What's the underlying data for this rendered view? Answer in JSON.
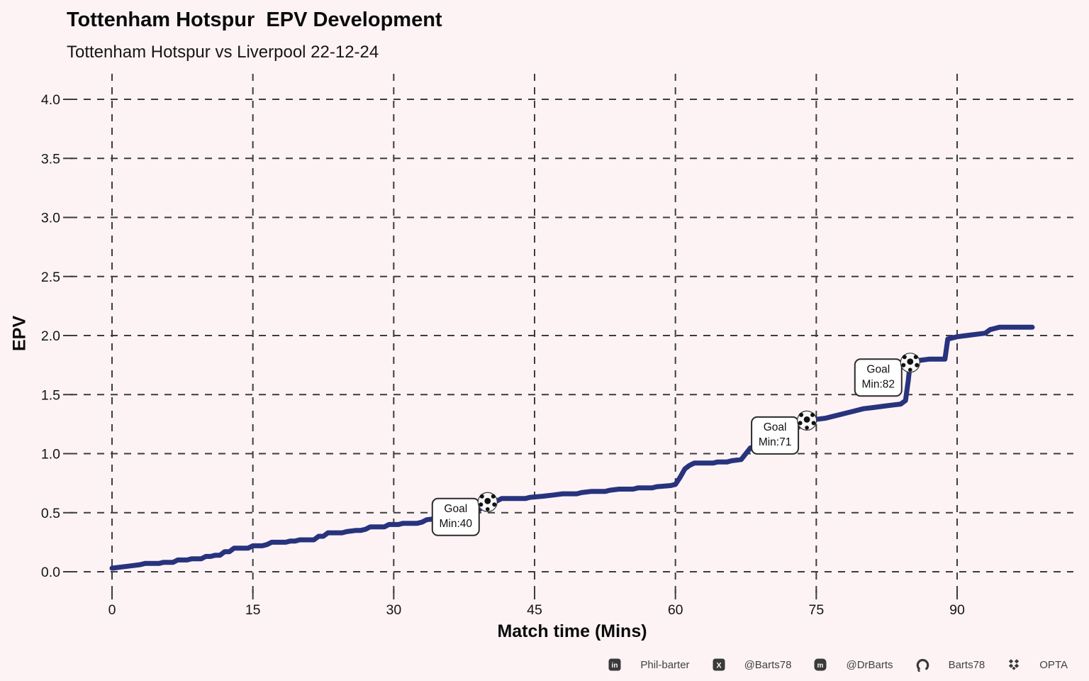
{
  "header": {
    "title": "Tottenham Hotspur  EPV Development",
    "subtitle": "Tottenham Hotspur vs Liverpool 22-12-24"
  },
  "chart_data": {
    "type": "line",
    "style": "step",
    "title": "Tottenham Hotspur  EPV Development",
    "subtitle": "Tottenham Hotspur vs Liverpool 22-12-24",
    "xlabel": "Match time (Mins)",
    "ylabel": "EPV",
    "xlim": [
      0,
      98
    ],
    "ylim": [
      0,
      4.0
    ],
    "x_ticks": [
      0,
      15,
      30,
      45,
      60,
      75,
      90
    ],
    "y_ticks": [
      0.0,
      0.5,
      1.0,
      1.5,
      2.0,
      2.5,
      3.0,
      3.5,
      4.0
    ],
    "grid": "dashed",
    "colors": {
      "line": "#28337e",
      "background": "#fdf3f5",
      "grid": "#3c3c3c"
    },
    "series": [
      {
        "name": "Tottenham Hotspur EPV",
        "color": "#28337e",
        "points": [
          [
            0,
            0.03
          ],
          [
            1,
            0.04
          ],
          [
            2,
            0.05
          ],
          [
            3,
            0.06
          ],
          [
            3.5,
            0.07
          ],
          [
            5,
            0.07
          ],
          [
            5.5,
            0.08
          ],
          [
            6.5,
            0.08
          ],
          [
            7,
            0.1
          ],
          [
            8,
            0.1
          ],
          [
            8.5,
            0.11
          ],
          [
            9.5,
            0.11
          ],
          [
            10,
            0.13
          ],
          [
            10.5,
            0.13
          ],
          [
            11,
            0.14
          ],
          [
            11.5,
            0.14
          ],
          [
            12,
            0.17
          ],
          [
            12.5,
            0.17
          ],
          [
            13,
            0.2
          ],
          [
            14.5,
            0.2
          ],
          [
            15,
            0.22
          ],
          [
            16,
            0.22
          ],
          [
            16.5,
            0.23
          ],
          [
            17,
            0.25
          ],
          [
            18.5,
            0.25
          ],
          [
            19,
            0.26
          ],
          [
            19.5,
            0.26
          ],
          [
            20,
            0.27
          ],
          [
            21.5,
            0.27
          ],
          [
            22,
            0.3
          ],
          [
            22.5,
            0.3
          ],
          [
            23,
            0.33
          ],
          [
            24.5,
            0.33
          ],
          [
            25,
            0.34
          ],
          [
            26,
            0.35
          ],
          [
            26.5,
            0.35
          ],
          [
            27,
            0.36
          ],
          [
            27.5,
            0.38
          ],
          [
            29,
            0.38
          ],
          [
            29.5,
            0.4
          ],
          [
            30.5,
            0.4
          ],
          [
            31,
            0.41
          ],
          [
            32.5,
            0.41
          ],
          [
            33,
            0.42
          ],
          [
            33.5,
            0.44
          ],
          [
            34.5,
            0.45
          ],
          [
            36,
            0.45
          ],
          [
            36.5,
            0.46
          ],
          [
            37.5,
            0.47
          ],
          [
            38.5,
            0.48
          ],
          [
            39,
            0.52
          ],
          [
            39.5,
            0.55
          ],
          [
            40,
            0.59
          ],
          [
            41,
            0.6
          ],
          [
            41.5,
            0.62
          ],
          [
            44,
            0.62
          ],
          [
            44.5,
            0.63
          ],
          [
            46,
            0.64
          ],
          [
            47,
            0.65
          ],
          [
            48,
            0.66
          ],
          [
            49.5,
            0.66
          ],
          [
            50,
            0.67
          ],
          [
            51,
            0.68
          ],
          [
            52.5,
            0.68
          ],
          [
            53,
            0.69
          ],
          [
            54,
            0.7
          ],
          [
            55.5,
            0.7
          ],
          [
            56,
            0.71
          ],
          [
            57.5,
            0.71
          ],
          [
            58,
            0.72
          ],
          [
            59.5,
            0.73
          ],
          [
            60,
            0.74
          ],
          [
            60.5,
            0.8
          ],
          [
            61,
            0.87
          ],
          [
            61.5,
            0.9
          ],
          [
            62,
            0.92
          ],
          [
            64,
            0.92
          ],
          [
            64.5,
            0.93
          ],
          [
            65.5,
            0.93
          ],
          [
            66,
            0.94
          ],
          [
            67,
            0.95
          ],
          [
            67.5,
            1.0
          ],
          [
            68,
            1.05
          ],
          [
            68.5,
            1.05
          ],
          [
            69,
            1.07
          ],
          [
            70,
            1.1
          ],
          [
            71,
            1.12
          ],
          [
            71.5,
            1.15
          ],
          [
            72,
            1.18
          ],
          [
            72.5,
            1.2
          ],
          [
            73,
            1.22
          ],
          [
            73.5,
            1.25
          ],
          [
            74,
            1.28
          ],
          [
            75,
            1.29
          ],
          [
            76,
            1.3
          ],
          [
            77,
            1.32
          ],
          [
            78,
            1.34
          ],
          [
            79,
            1.36
          ],
          [
            80,
            1.38
          ],
          [
            81,
            1.39
          ],
          [
            82,
            1.4
          ],
          [
            83,
            1.41
          ],
          [
            84,
            1.42
          ],
          [
            84.5,
            1.45
          ],
          [
            84.8,
            1.62
          ],
          [
            85,
            1.77
          ],
          [
            85.5,
            1.78
          ],
          [
            86,
            1.79
          ],
          [
            87,
            1.8
          ],
          [
            88.7,
            1.8
          ],
          [
            89,
            1.97
          ],
          [
            90,
            1.99
          ],
          [
            91,
            2.0
          ],
          [
            92,
            2.01
          ],
          [
            93,
            2.02
          ],
          [
            93.5,
            2.05
          ],
          [
            94,
            2.06
          ],
          [
            94.5,
            2.07
          ],
          [
            98,
            2.07
          ]
        ]
      }
    ],
    "goals": [
      {
        "text_line1": "Goal",
        "text_line2": "Min:40",
        "minute_label": 40,
        "axis_minute": 40,
        "epv": 0.59
      },
      {
        "text_line1": "Goal",
        "text_line2": "Min:71",
        "minute_label": 71,
        "axis_minute": 74,
        "epv": 1.28
      },
      {
        "text_line1": "Goal",
        "text_line2": "Min:82",
        "minute_label": 82,
        "axis_minute": 85,
        "epv": 1.77
      }
    ]
  },
  "footer": {
    "items": [
      {
        "icon": "linkedin-icon",
        "label": "Phil-barter"
      },
      {
        "icon": "x-icon",
        "label": "@Barts78"
      },
      {
        "icon": "mastodon-icon",
        "label": "@DrBarts"
      },
      {
        "icon": "github-icon",
        "label": "Barts78"
      },
      {
        "icon": "dropbox-icon",
        "label": "OPTA"
      }
    ]
  }
}
